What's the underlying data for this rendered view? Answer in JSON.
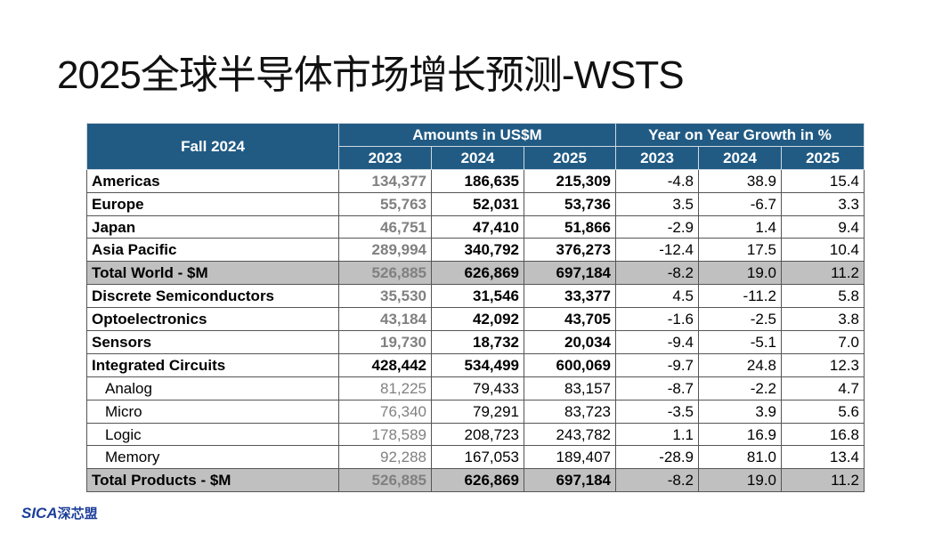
{
  "title": "2025全球半导体市场增长预测-WSTS",
  "table": {
    "header": {
      "corner": "Fall 2024",
      "groups": [
        "Amounts in US$M",
        "Year on Year Growth in %"
      ],
      "years": [
        "2023",
        "2024",
        "2025",
        "2023",
        "2024",
        "2025"
      ]
    },
    "rows": [
      [
        "Americas",
        "134,377",
        "186,635",
        "215,309",
        "-4.8",
        "38.9",
        "15.4"
      ],
      [
        "Europe",
        "55,763",
        "52,031",
        "53,736",
        "3.5",
        "-6.7",
        "3.3"
      ],
      [
        "Japan",
        "46,751",
        "47,410",
        "51,866",
        "-2.9",
        "1.4",
        "9.4"
      ],
      [
        "Asia Pacific",
        "289,994",
        "340,792",
        "376,273",
        "-12.4",
        "17.5",
        "10.4"
      ],
      [
        "Total World - $M",
        "526,885",
        "626,869",
        "697,184",
        "-8.2",
        "19.0",
        "11.2"
      ],
      [
        "Discrete Semiconductors",
        "35,530",
        "31,546",
        "33,377",
        "4.5",
        "-11.2",
        "5.8"
      ],
      [
        "Optoelectronics",
        "43,184",
        "42,092",
        "43,705",
        "-1.6",
        "-2.5",
        "3.8"
      ],
      [
        "Sensors",
        "19,730",
        "18,732",
        "20,034",
        "-9.4",
        "-5.1",
        "7.0"
      ],
      [
        "Integrated Circuits",
        "428,442",
        "534,499",
        "600,069",
        "-9.7",
        "24.8",
        "12.3"
      ],
      [
        "Analog",
        "81,225",
        "79,433",
        "83,157",
        "-8.7",
        "-2.2",
        "4.7"
      ],
      [
        "Micro",
        "76,340",
        "79,291",
        "83,723",
        "-3.5",
        "3.9",
        "5.6"
      ],
      [
        "Logic",
        "178,589",
        "208,723",
        "243,782",
        "1.1",
        "16.9",
        "16.8"
      ],
      [
        "Memory",
        "92,288",
        "167,053",
        "189,407",
        "-28.9",
        "81.0",
        "13.4"
      ],
      [
        "Total Products - $M",
        "526,885",
        "626,869",
        "697,184",
        "-8.2",
        "19.0",
        "11.2"
      ]
    ]
  },
  "logo": {
    "brand": "SICA",
    "name": "深芯盟"
  }
}
